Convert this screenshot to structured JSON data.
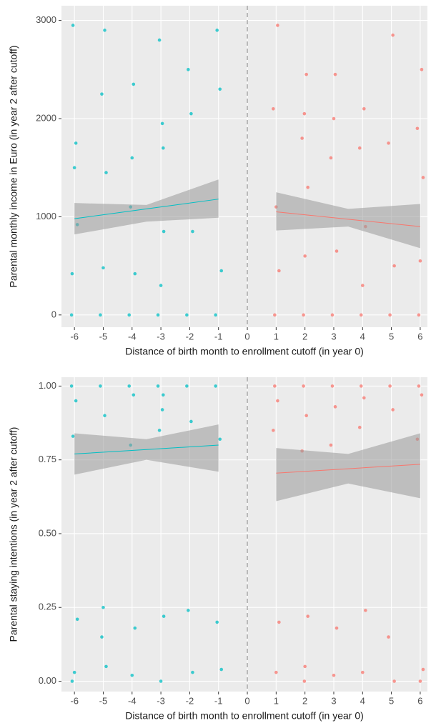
{
  "chart_data": [
    {
      "type": "scatter",
      "xlabel": "Distance of birth month to enrollment cutoff (in year 0)",
      "ylabel": "Parental monthly income in Euro (in year 2 after cutoff)",
      "xlim": [
        -6.45,
        6.25
      ],
      "ylim": [
        -125,
        3150
      ],
      "xticks": [
        -6,
        -5,
        -4,
        -3,
        -2,
        -1,
        0,
        1,
        2,
        3,
        4,
        5,
        6
      ],
      "yticks": [
        0,
        1000,
        2000,
        3000
      ],
      "grid": true,
      "cutoff": 0,
      "series": [
        {
          "color": "#00bfc4",
          "x": [
            -6.1,
            -5.95,
            -6.05,
            -5.9,
            -6.0,
            -6.08,
            -5.1,
            -4.95,
            -5.05,
            -4.9,
            -5.0,
            -4.1,
            -3.95,
            -4.05,
            -3.9,
            -4.0,
            -3.1,
            -2.95,
            -3.05,
            -2.9,
            -3.0,
            -2.92,
            -2.1,
            -1.95,
            -2.05,
            -1.9,
            -1.1,
            -0.95,
            -1.05,
            -0.9
          ],
          "values": [
            0,
            1750,
            2950,
            920,
            1500,
            420,
            0,
            2900,
            2250,
            1450,
            480,
            0,
            2350,
            1100,
            420,
            1600,
            0,
            1950,
            2800,
            850,
            300,
            1700,
            0,
            2050,
            2500,
            850,
            0,
            2300,
            2900,
            450
          ]
        },
        {
          "color": "#f8766d",
          "x": [
            0.95,
            1.05,
            0.9,
            1.1,
            1.0,
            1.95,
            2.05,
            1.9,
            2.1,
            2.0,
            1.98,
            2.95,
            3.05,
            2.9,
            3.1,
            3.0,
            3.95,
            4.05,
            3.9,
            4.1,
            4.0,
            4.95,
            5.05,
            4.9,
            5.1,
            5.95,
            6.05,
            5.9,
            6.1,
            6.0
          ],
          "values": [
            0,
            2950,
            2100,
            450,
            1100,
            0,
            2450,
            1800,
            1300,
            600,
            2050,
            0,
            2450,
            1600,
            650,
            2000,
            0,
            2100,
            1700,
            900,
            300,
            0,
            2850,
            1750,
            500,
            0,
            2500,
            1900,
            1400,
            550
          ]
        }
      ],
      "fits": [
        {
          "color": "#00bfc4",
          "x": [
            -6,
            -3.5,
            -1
          ],
          "values": [
            980,
            1080,
            1180
          ],
          "lower": [
            820,
            950,
            990
          ],
          "upper": [
            1140,
            1120,
            1380
          ]
        },
        {
          "color": "#f8766d",
          "x": [
            1,
            3.5,
            6
          ],
          "values": [
            1050,
            975,
            900
          ],
          "lower": [
            860,
            900,
            680
          ],
          "upper": [
            1250,
            1080,
            1130
          ]
        }
      ]
    },
    {
      "type": "scatter",
      "xlabel": "Distance of birth month to enrollment cutoff (in year 0)",
      "ylabel": "Parental staying intentions (in year 2 after cutoff)",
      "xlim": [
        -6.45,
        6.25
      ],
      "ylim": [
        -0.035,
        1.03
      ],
      "xticks": [
        -6,
        -5,
        -4,
        -3,
        -2,
        -1,
        0,
        1,
        2,
        3,
        4,
        5,
        6
      ],
      "yticks": [
        {
          "value": 0,
          "label": "0.00"
        },
        {
          "value": 0.25,
          "label": "0.25"
        },
        {
          "value": 0.5,
          "label": "0.50"
        },
        {
          "value": 0.75,
          "label": "0.75"
        },
        {
          "value": 1,
          "label": "1.00"
        }
      ],
      "grid": true,
      "cutoff": 0,
      "series": [
        {
          "color": "#00bfc4",
          "x": [
            -6.1,
            -5.95,
            -6.05,
            -5.9,
            -6.0,
            -6.08,
            -5.1,
            -4.95,
            -5.05,
            -4.9,
            -5.0,
            -4.1,
            -3.95,
            -4.05,
            -3.9,
            -4.0,
            -3.1,
            -2.95,
            -3.05,
            -2.9,
            -3.0,
            -2.92,
            -2.1,
            -1.95,
            -2.05,
            -1.9,
            -1.1,
            -0.95,
            -1.05,
            -0.9
          ],
          "values": [
            1,
            0.95,
            0.83,
            0.21,
            0.03,
            0,
            1,
            0.9,
            0.15,
            0.05,
            0.25,
            1,
            0.97,
            0.8,
            0.18,
            0.02,
            1,
            0.92,
            0.85,
            0.22,
            0,
            0.97,
            1,
            0.88,
            0.24,
            0.03,
            1,
            0.82,
            0.2,
            0.04
          ]
        },
        {
          "color": "#f8766d",
          "x": [
            0.95,
            1.05,
            0.9,
            1.1,
            1.0,
            1.95,
            2.05,
            1.9,
            2.1,
            2.0,
            1.98,
            2.95,
            3.05,
            2.9,
            3.1,
            3.0,
            3.95,
            4.05,
            3.9,
            4.1,
            4.0,
            4.95,
            5.05,
            4.9,
            5.1,
            5.95,
            6.05,
            5.9,
            6.1,
            6.0
          ],
          "values": [
            1,
            0.95,
            0.85,
            0.2,
            0.03,
            1,
            0.9,
            0.78,
            0.22,
            0.05,
            0,
            1,
            0.93,
            0.8,
            0.18,
            0.02,
            1,
            0.96,
            0.86,
            0.24,
            0.03,
            1,
            0.92,
            0.15,
            0,
            1,
            0.97,
            0.82,
            0.04,
            0
          ]
        }
      ],
      "fits": [
        {
          "color": "#00bfc4",
          "x": [
            -6,
            -3.5,
            -1
          ],
          "values": [
            0.77,
            0.785,
            0.8
          ],
          "lower": [
            0.7,
            0.75,
            0.71
          ],
          "upper": [
            0.84,
            0.82,
            0.87
          ]
        },
        {
          "color": "#f8766d",
          "x": [
            1,
            3.5,
            6
          ],
          "values": [
            0.705,
            0.72,
            0.735
          ],
          "lower": [
            0.61,
            0.67,
            0.62
          ],
          "upper": [
            0.79,
            0.77,
            0.84
          ]
        }
      ]
    }
  ]
}
